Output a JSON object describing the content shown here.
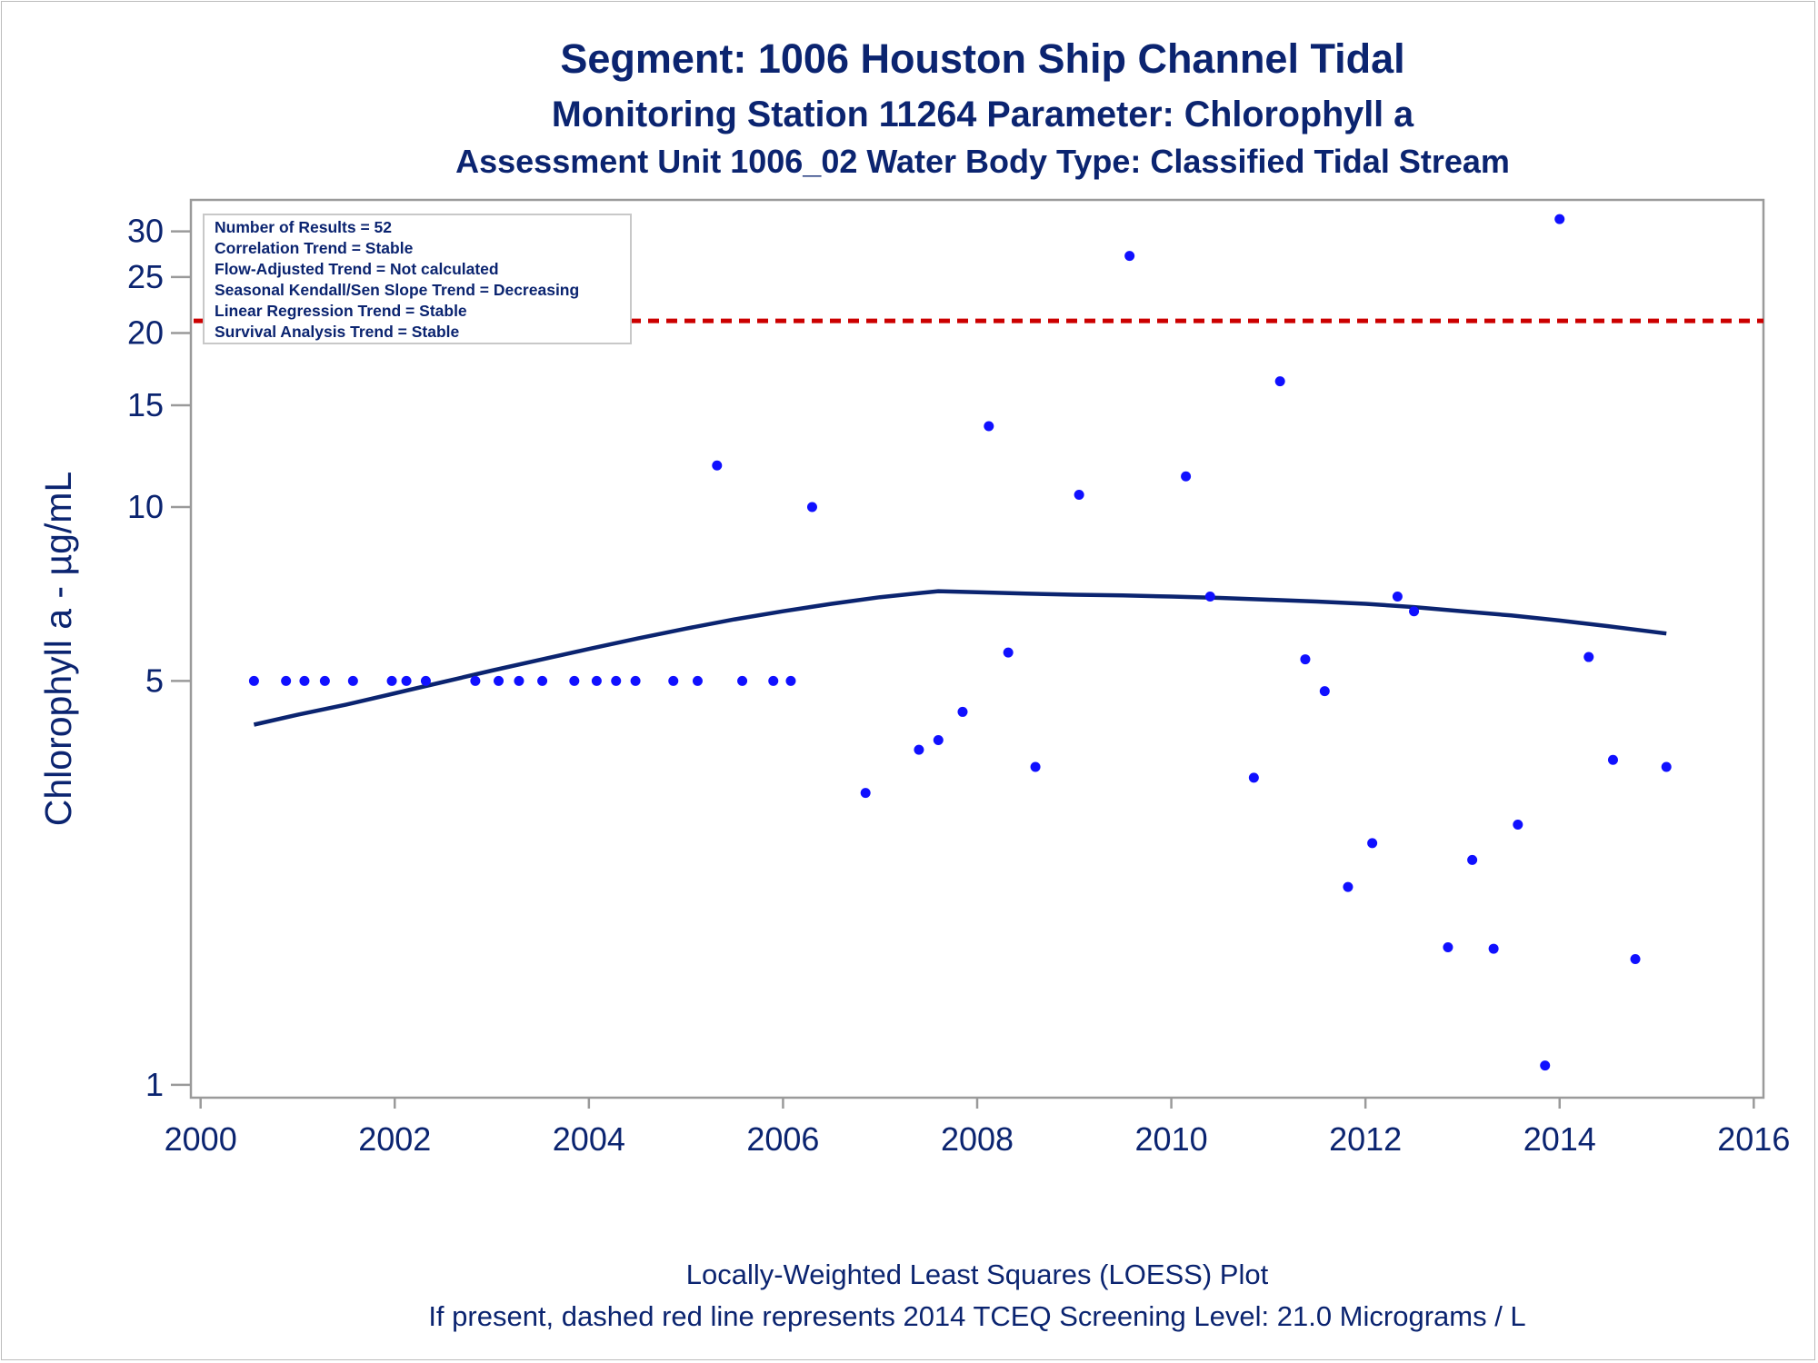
{
  "titles": {
    "line1": "Segment: 1006  Houston Ship Channel Tidal",
    "line2": "Monitoring Station 11264 Parameter: Chlorophyll a",
    "line3": "Assessment Unit 1006_02   Water Body Type: Classified Tidal Stream"
  },
  "footnotes": {
    "line1": "Locally-Weighted Least Squares (LOESS) Plot",
    "line2": "If present, dashed red line represents 2014 TCEQ Screening Level: 21.0 Micrograms / L"
  },
  "stats_box": [
    "Number of Results = 52",
    "Correlation Trend = Stable",
    "Flow-Adjusted Trend = Not calculated",
    "Seasonal Kendall/Sen Slope Trend = Decreasing",
    "Linear Regression Trend = Stable",
    "Survival Analysis Trend = Stable"
  ],
  "colors": {
    "points": "#1010ff",
    "loess": "#0b2470",
    "screening_line": "#cc0000",
    "text": "#0b2470",
    "frame": "#9a9a9a"
  },
  "chart_data": {
    "type": "scatter",
    "ylabel": "Chlorophyll a -  µg/mL",
    "xlabel": "",
    "y_scale": "log",
    "xlim": [
      1999.9,
      2016.1
    ],
    "ylim": [
      0.95,
      34
    ],
    "x_ticks": [
      2000,
      2002,
      2004,
      2006,
      2008,
      2010,
      2012,
      2014,
      2016
    ],
    "y_ticks": [
      1,
      5,
      10,
      15,
      20,
      25,
      30
    ],
    "screening_level": 21.0,
    "series": [
      {
        "kind": "points",
        "points": [
          [
            2000.55,
            5.0
          ],
          [
            2000.88,
            5.0
          ],
          [
            2001.07,
            5.0
          ],
          [
            2001.28,
            5.0
          ],
          [
            2001.57,
            5.0
          ],
          [
            2001.97,
            5.0
          ],
          [
            2002.12,
            5.0
          ],
          [
            2002.32,
            5.0
          ],
          [
            2002.83,
            5.0
          ],
          [
            2003.07,
            5.0
          ],
          [
            2003.28,
            5.0
          ],
          [
            2003.52,
            5.0
          ],
          [
            2003.85,
            5.0
          ],
          [
            2004.08,
            5.0
          ],
          [
            2004.28,
            5.0
          ],
          [
            2004.48,
            5.0
          ],
          [
            2004.87,
            5.0
          ],
          [
            2005.12,
            5.0
          ],
          [
            2005.58,
            5.0
          ],
          [
            2005.9,
            5.0
          ],
          [
            2006.08,
            5.0
          ],
          [
            2005.32,
            11.8
          ],
          [
            2006.3,
            10.0
          ],
          [
            2006.85,
            3.2
          ],
          [
            2007.4,
            3.8
          ],
          [
            2007.6,
            3.95
          ],
          [
            2007.85,
            4.42
          ],
          [
            2008.12,
            13.8
          ],
          [
            2008.32,
            5.6
          ],
          [
            2008.6,
            3.55
          ],
          [
            2009.05,
            10.5
          ],
          [
            2009.57,
            27.2
          ],
          [
            2010.15,
            11.3
          ],
          [
            2010.4,
            7.0
          ],
          [
            2010.85,
            3.4
          ],
          [
            2011.12,
            16.5
          ],
          [
            2011.38,
            5.45
          ],
          [
            2011.58,
            4.8
          ],
          [
            2011.82,
            2.2
          ],
          [
            2012.07,
            2.62
          ],
          [
            2012.33,
            7.0
          ],
          [
            2012.5,
            6.6
          ],
          [
            2012.85,
            1.73
          ],
          [
            2013.1,
            2.45
          ],
          [
            2013.32,
            1.72
          ],
          [
            2013.57,
            2.82
          ],
          [
            2013.85,
            1.08
          ],
          [
            2014.0,
            31.5
          ],
          [
            2014.3,
            5.5
          ],
          [
            2014.55,
            3.65
          ],
          [
            2014.78,
            1.65
          ],
          [
            2015.1,
            3.55
          ]
        ]
      },
      {
        "kind": "loess",
        "points": [
          [
            2000.55,
            4.2
          ],
          [
            2001.0,
            4.37
          ],
          [
            2001.5,
            4.55
          ],
          [
            2002.0,
            4.76
          ],
          [
            2002.5,
            4.98
          ],
          [
            2003.0,
            5.21
          ],
          [
            2003.5,
            5.44
          ],
          [
            2004.0,
            5.68
          ],
          [
            2004.5,
            5.92
          ],
          [
            2005.0,
            6.16
          ],
          [
            2005.5,
            6.39
          ],
          [
            2006.0,
            6.6
          ],
          [
            2006.5,
            6.8
          ],
          [
            2007.0,
            6.98
          ],
          [
            2007.6,
            7.15
          ],
          [
            2008.0,
            7.12
          ],
          [
            2008.5,
            7.08
          ],
          [
            2009.0,
            7.05
          ],
          [
            2009.5,
            7.03
          ],
          [
            2010.0,
            7.0
          ],
          [
            2010.5,
            6.96
          ],
          [
            2011.0,
            6.91
          ],
          [
            2011.5,
            6.86
          ],
          [
            2012.0,
            6.8
          ],
          [
            2012.5,
            6.71
          ],
          [
            2013.0,
            6.6
          ],
          [
            2013.5,
            6.49
          ],
          [
            2014.0,
            6.36
          ],
          [
            2014.5,
            6.22
          ],
          [
            2015.1,
            6.04
          ]
        ]
      }
    ]
  }
}
